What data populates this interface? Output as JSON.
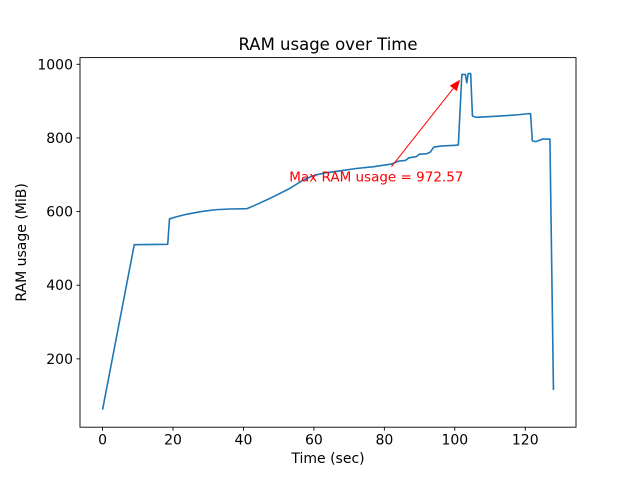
{
  "chart_data": {
    "type": "line",
    "title": "RAM usage over Time",
    "xlabel": "Time (sec)",
    "ylabel": "RAM usage (MiB)",
    "xlim": [
      -6.4,
      134.4
    ],
    "ylim": [
      14.4,
      1018.2
    ],
    "x_ticks": [
      0,
      20,
      40,
      60,
      80,
      100,
      120
    ],
    "y_ticks": [
      200,
      400,
      600,
      800,
      1000
    ],
    "grid": false,
    "legend": "none",
    "line_color": "#1f77b4",
    "axis_color": "#000000",
    "background_color": "#ffffff",
    "series": [
      {
        "name": "RAM usage",
        "points": [
          [
            0,
            62
          ],
          [
            9,
            510
          ],
          [
            18.5,
            511
          ],
          [
            19,
            580
          ],
          [
            21,
            586
          ],
          [
            24,
            593
          ],
          [
            28,
            600
          ],
          [
            32,
            605
          ],
          [
            36,
            607
          ],
          [
            41,
            608
          ],
          [
            43,
            616
          ],
          [
            48,
            638
          ],
          [
            53,
            662
          ],
          [
            57,
            686
          ],
          [
            60,
            698
          ],
          [
            63,
            705
          ],
          [
            67,
            710
          ],
          [
            72,
            717
          ],
          [
            77,
            722
          ],
          [
            82,
            729
          ],
          [
            84,
            737
          ],
          [
            86,
            739
          ],
          [
            87,
            746
          ],
          [
            89,
            749
          ],
          [
            90,
            756
          ],
          [
            92,
            757
          ],
          [
            93,
            761
          ],
          [
            94,
            775
          ],
          [
            96,
            778
          ],
          [
            98,
            779
          ],
          [
            100,
            780
          ],
          [
            101,
            781
          ],
          [
            102,
            972.57
          ],
          [
            103,
            972.57
          ],
          [
            103.4,
            950
          ],
          [
            103.8,
            975
          ],
          [
            104.5,
            975
          ],
          [
            105,
            860
          ],
          [
            106,
            856
          ],
          [
            112,
            859
          ],
          [
            118,
            863
          ],
          [
            121,
            866
          ],
          [
            121.5,
            866
          ],
          [
            122,
            792
          ],
          [
            123,
            790
          ],
          [
            125,
            797
          ],
          [
            127,
            797
          ],
          [
            128,
            115
          ]
        ]
      }
    ],
    "annotation": {
      "text": "Max RAM usage = 972.57",
      "color": "#ff0000",
      "text_pos": [
        53,
        682
      ],
      "arrow_tail": [
        82,
        722
      ],
      "arrow_head": [
        101.5,
        958
      ],
      "max_value": 972.57
    }
  }
}
